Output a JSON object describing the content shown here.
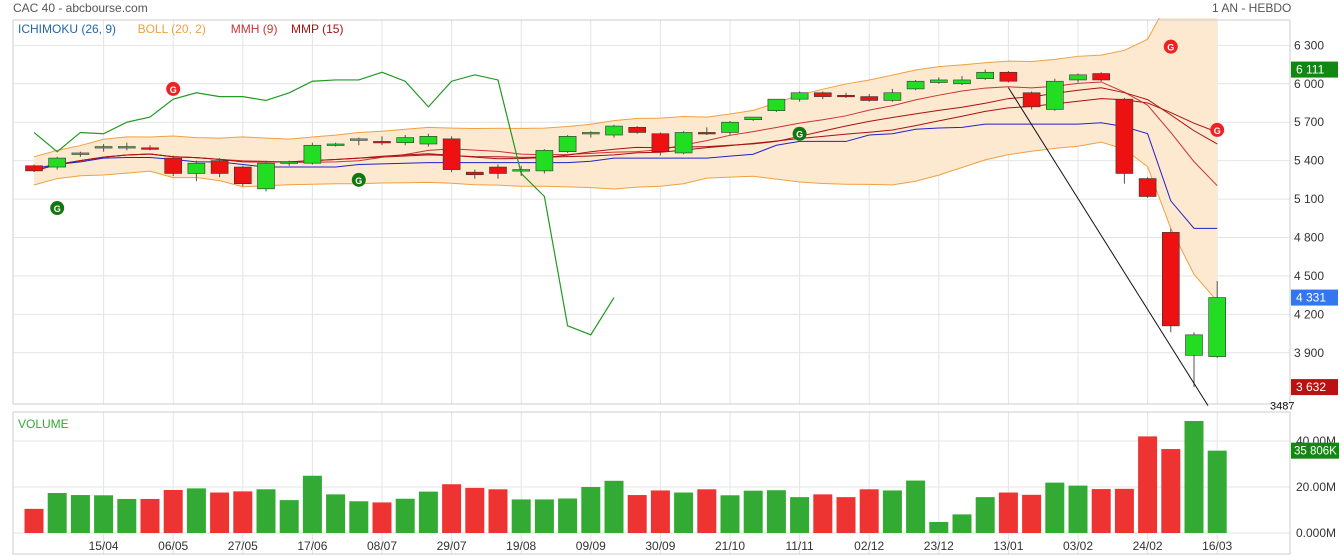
{
  "header": {
    "title": "CAC 40 - abcbourse.com",
    "period": "1 AN - HEBDO"
  },
  "colors": {
    "up": "#22dd22",
    "down": "#ee1111",
    "ichimoku_fast": "#2222cc",
    "ichimoku_slow": "#2266aa",
    "chikou": "#229922",
    "boll": "#f0a040",
    "boll_fill": "#fde8d0",
    "mmh": "#cc3333",
    "mmp": "#aa1111",
    "last_price_tag": "#3377ee",
    "min_tag": "#bb1111",
    "max_tag": "#118811",
    "volume_up": "#33aa33",
    "volume_down": "#ee3333"
  },
  "legend": [
    {
      "label": "ICHIMOKU (26, 9)",
      "color": "#2266aa"
    },
    {
      "label": "BOLL (20, 2)",
      "color": "#f0a040"
    },
    {
      "label": "MMH (9)",
      "color": "#cc3333"
    },
    {
      "label": "MMP (15)",
      "color": "#aa1111"
    }
  ],
  "price_tags": {
    "last": "4 331",
    "high": "6 111",
    "low": "3 632",
    "min_label": "3487"
  },
  "volume_panel": {
    "title": "VOLUME",
    "tag": "35 806K",
    "ticks": [
      "40.00M",
      "20.00M",
      "0.000M"
    ]
  },
  "chart_data": {
    "type": "candlestick",
    "y_ticks": [
      "6 300",
      "6 000",
      "5 700",
      "5 400",
      "5 100",
      "4 800",
      "4 500",
      "4 200",
      "3 900"
    ],
    "y_tick_values": [
      6300,
      6000,
      5700,
      5400,
      5100,
      4800,
      4500,
      4200,
      3900
    ],
    "ylim": [
      3500,
      6420
    ],
    "x_labels": [
      "15/04",
      "06/05",
      "27/05",
      "17/06",
      "08/07",
      "29/07",
      "19/08",
      "09/09",
      "30/09",
      "21/10",
      "11/11",
      "02/12",
      "23/12",
      "13/01",
      "03/02",
      "24/02",
      "16/03"
    ],
    "x_label_index": [
      3,
      6,
      9,
      12,
      15,
      18,
      21,
      24,
      27,
      30,
      33,
      36,
      39,
      42,
      45,
      48,
      51
    ],
    "ohlc": [
      [
        5360,
        5370,
        5310,
        5320
      ],
      [
        5350,
        5430,
        5330,
        5420
      ],
      [
        5450,
        5470,
        5430,
        5460
      ],
      [
        5500,
        5530,
        5470,
        5510
      ],
      [
        5500,
        5540,
        5480,
        5510
      ],
      [
        5500,
        5520,
        5480,
        5490
      ],
      [
        5420,
        5440,
        5280,
        5300
      ],
      [
        5300,
        5400,
        5240,
        5380
      ],
      [
        5400,
        5420,
        5270,
        5300
      ],
      [
        5350,
        5360,
        5200,
        5220
      ],
      [
        5180,
        5400,
        5160,
        5380
      ],
      [
        5380,
        5400,
        5360,
        5390
      ],
      [
        5380,
        5540,
        5370,
        5520
      ],
      [
        5530,
        5540,
        5510,
        5530
      ],
      [
        5560,
        5580,
        5520,
        5570
      ],
      [
        5550,
        5590,
        5520,
        5540
      ],
      [
        5540,
        5600,
        5520,
        5580
      ],
      [
        5530,
        5610,
        5510,
        5590
      ],
      [
        5570,
        5590,
        5310,
        5330
      ],
      [
        5310,
        5330,
        5260,
        5290
      ],
      [
        5350,
        5370,
        5260,
        5300
      ],
      [
        5330,
        5360,
        5280,
        5330
      ],
      [
        5320,
        5490,
        5300,
        5480
      ],
      [
        5470,
        5600,
        5460,
        5590
      ],
      [
        5610,
        5630,
        5580,
        5620
      ],
      [
        5600,
        5680,
        5580,
        5670
      ],
      [
        5660,
        5670,
        5610,
        5620
      ],
      [
        5610,
        5620,
        5440,
        5470
      ],
      [
        5460,
        5630,
        5450,
        5620
      ],
      [
        5620,
        5660,
        5600,
        5610
      ],
      [
        5620,
        5710,
        5600,
        5700
      ],
      [
        5720,
        5740,
        5710,
        5740
      ],
      [
        5790,
        5880,
        5780,
        5880
      ],
      [
        5880,
        5940,
        5860,
        5930
      ],
      [
        5930,
        5940,
        5880,
        5900
      ],
      [
        5910,
        5930,
        5890,
        5900
      ],
      [
        5900,
        5920,
        5860,
        5870
      ],
      [
        5870,
        5960,
        5860,
        5930
      ],
      [
        5960,
        6030,
        5950,
        6020
      ],
      [
        6010,
        6050,
        6000,
        6030
      ],
      [
        6000,
        6060,
        5990,
        6030
      ],
      [
        6040,
        6111,
        6030,
        6090
      ],
      [
        6090,
        6100,
        6010,
        6020
      ],
      [
        5930,
        5940,
        5800,
        5820
      ],
      [
        5800,
        6040,
        5790,
        6020
      ],
      [
        6030,
        6080,
        6010,
        6070
      ],
      [
        6080,
        6090,
        6020,
        6030
      ],
      [
        5880,
        5890,
        5220,
        5300
      ],
      [
        5260,
        5270,
        5110,
        5120
      ],
      [
        4840,
        4870,
        4060,
        4110
      ],
      [
        3880,
        4060,
        3632,
        4040
      ],
      [
        3870,
        4460,
        3860,
        4331
      ]
    ],
    "volume_m": [
      10.5,
      17.4,
      16.5,
      16.4,
      14.8,
      14.8,
      18.7,
      19.4,
      17.6,
      18.1,
      19.0,
      14.3,
      24.9,
      16.8,
      13.8,
      13.3,
      14.9,
      18.0,
      21.2,
      19.6,
      19.0,
      14.6,
      14.6,
      15.0,
      20.0,
      22.7,
      16.5,
      18.5,
      17.6,
      19.0,
      16.4,
      18.4,
      18.6,
      15.6,
      16.8,
      15.6,
      19.0,
      18.5,
      22.8,
      4.8,
      8.1,
      15.6,
      17.6,
      16.6,
      21.9,
      20.6,
      19.1,
      19.2,
      42.0,
      36.5,
      48.7,
      35.8
    ]
  }
}
